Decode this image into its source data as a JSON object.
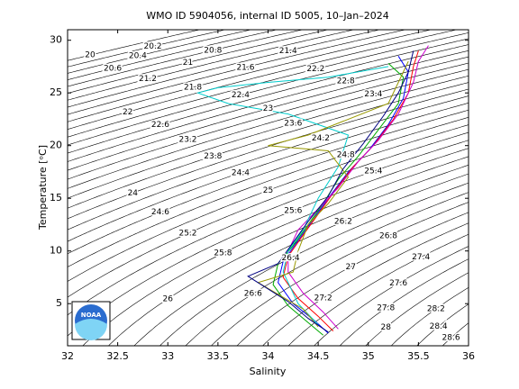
{
  "chart_data": {
    "type": "ts",
    "title": "WMO ID 5904056, internal ID 5005, 10–Jan–2024",
    "xlabel": "Salinity",
    "ylabel": "Temperature [ᵒC]",
    "logo_text": "NOAA",
    "xlim": [
      32,
      36
    ],
    "ylim": [
      1,
      31
    ],
    "xticks": [
      32,
      32.5,
      33,
      33.5,
      34,
      34.5,
      35,
      35.5,
      36
    ],
    "yticks": [
      5,
      10,
      15,
      20,
      25,
      30
    ],
    "contour_levels": [
      20,
      20.2,
      20.4,
      20.6,
      20.8,
      21,
      21.2,
      21.4,
      21.6,
      21.8,
      22,
      22.2,
      22.4,
      22.6,
      22.8,
      23,
      23.2,
      23.4,
      23.6,
      23.8,
      24,
      24.2,
      24.4,
      24.6,
      24.8,
      25,
      25.2,
      25.4,
      25.6,
      25.8,
      26,
      26.2,
      26.4,
      26.6,
      26.8,
      27,
      27.2,
      27.4,
      27.6,
      27.8,
      28,
      28.2,
      28.4,
      28.6
    ],
    "series": [
      {
        "color": "#0000ff",
        "x": [
          35.3,
          35.4,
          35.35,
          35.2,
          35.0,
          34.8,
          34.6,
          34.45,
          34.3,
          34.15,
          34.1,
          34.25,
          34.45,
          34.6
        ],
        "values": [
          28.5,
          27,
          24.5,
          22,
          19.5,
          17.5,
          15,
          13,
          11,
          9,
          7,
          5,
          3.5,
          2.2
        ]
      },
      {
        "color": "#ff0000",
        "x": [
          35.5,
          35.45,
          35.4,
          35.25,
          35.05,
          34.85,
          34.65,
          34.5,
          34.35,
          34.2,
          34.15,
          34.3,
          34.5,
          34.65
        ],
        "values": [
          29,
          27.5,
          25,
          22.5,
          20,
          18,
          15.5,
          13.5,
          11.5,
          9.5,
          7.5,
          5.5,
          3.8,
          2.4
        ]
      },
      {
        "color": "#00aa00",
        "x": [
          35.2,
          35.35,
          35.3,
          35.1,
          34.9,
          34.7,
          34.55,
          34.4,
          34.25,
          34.1,
          34.05,
          34.2,
          34.4,
          34.55
        ],
        "values": [
          27.8,
          26.5,
          24,
          21.5,
          19,
          16.8,
          14.5,
          12.5,
          10.5,
          8.8,
          6.8,
          4.8,
          3.2,
          2.0
        ]
      },
      {
        "color": "#cc00cc",
        "x": [
          35.6,
          35.5,
          35.45,
          35.3,
          35.1,
          34.9,
          34.7,
          34.5,
          34.3,
          34.2,
          34.2,
          34.35,
          34.55,
          34.7
        ],
        "values": [
          29.5,
          28,
          26,
          23,
          20.5,
          18.5,
          16,
          14,
          12,
          10,
          8,
          6,
          4.2,
          2.6
        ]
      },
      {
        "color": "#00cccc",
        "x": [
          35.2,
          34.6,
          34.0,
          33.5,
          33.3,
          33.6,
          34.2,
          34.8,
          34.7,
          34.5,
          34.35,
          34.2,
          34.15,
          34.3,
          34.5
        ],
        "values": [
          27.5,
          26.5,
          26,
          25.5,
          25,
          24,
          23,
          21,
          18,
          15,
          12,
          10,
          8,
          5,
          3
        ]
      },
      {
        "color": "#999900",
        "x": [
          35.4,
          35.3,
          35.2,
          34.4,
          34.0,
          34.6,
          34.8,
          34.6,
          34.4,
          34.3,
          34.25,
          33.9,
          34.35,
          34.5
        ],
        "values": [
          28,
          26,
          24,
          21,
          20,
          19.5,
          17,
          14.5,
          12.5,
          10,
          8,
          7,
          4.5,
          2.8
        ]
      },
      {
        "color": "#000080",
        "x": [
          35.45,
          35.4,
          35.3,
          35.15,
          34.95,
          34.75,
          34.6,
          34.4,
          34.25,
          34.1,
          33.8,
          34.2,
          34.4,
          34.6
        ],
        "values": [
          29,
          27,
          25,
          22.8,
          20.2,
          17.8,
          15.2,
          12.8,
          10.8,
          8.8,
          7.6,
          5.2,
          3.6,
          2.3
        ]
      }
    ]
  }
}
